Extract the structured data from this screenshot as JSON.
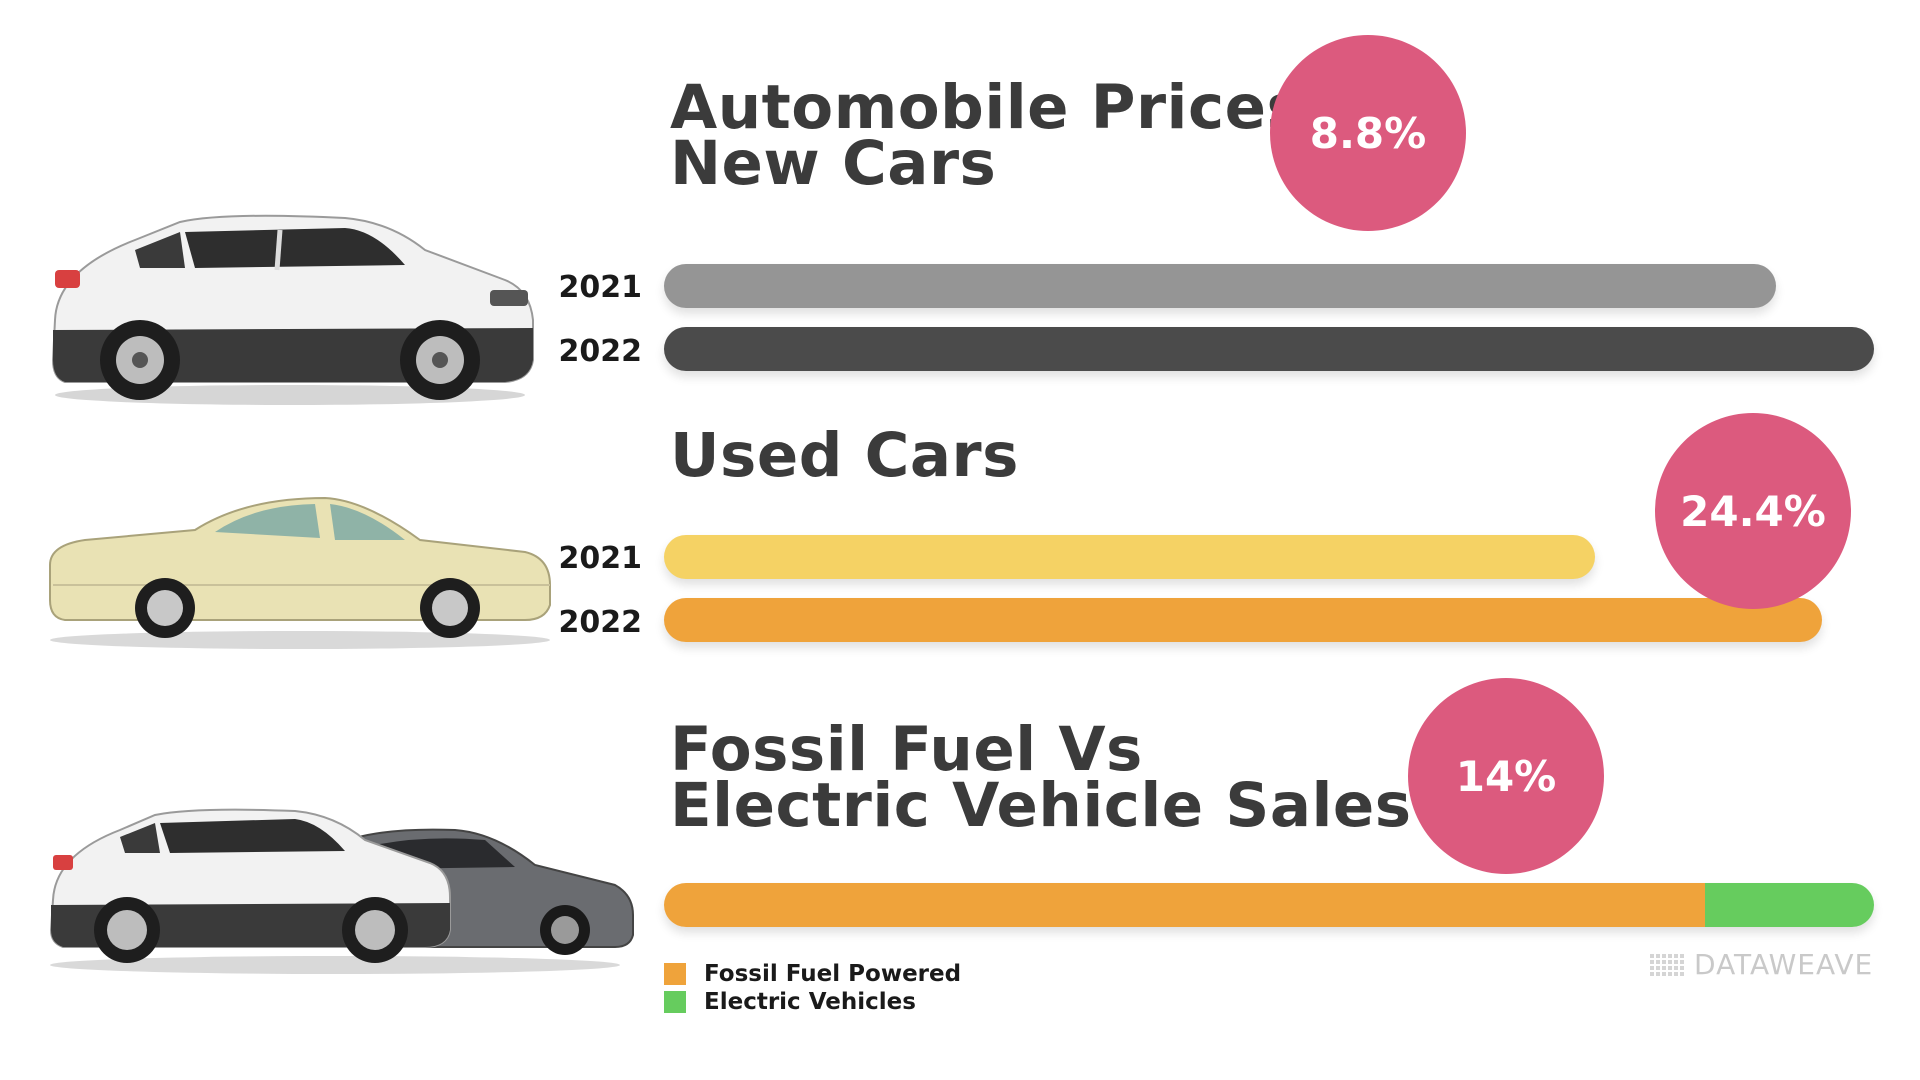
{
  "colors": {
    "bar_new_2021": "#959595",
    "bar_new_2022": "#4b4b4b",
    "bar_used_2021": "#f5d264",
    "bar_used_2022": "#efa33b",
    "fossil": "#efa33b",
    "electric": "#66cc5e",
    "badge": "#dc5a7e"
  },
  "sections": {
    "new": {
      "title_line1": "Automobile Prices",
      "title_line2": "New Cars",
      "badge": "8.8%"
    },
    "used": {
      "title_line1": "Used Cars",
      "badge": "24.4%"
    },
    "fuel": {
      "title_line1": "Fossil Fuel Vs",
      "title_line2": "Electric Vehicle Sales",
      "badge": "14%"
    }
  },
  "legend": {
    "fossil": "Fossil Fuel Powered",
    "electric": "Electric Vehicles"
  },
  "watermark": "DATAWEAVE",
  "chart_data": [
    {
      "type": "bar",
      "orientation": "horizontal",
      "categories": [
        "2021",
        "2022"
      ],
      "values": [
        100,
        108.8
      ],
      "title": "Automobile Prices New Cars",
      "annotation": "8.8%"
    },
    {
      "type": "bar",
      "orientation": "horizontal",
      "categories": [
        "2021",
        "2022"
      ],
      "values": [
        100,
        124.4
      ],
      "title": "Used Cars",
      "annotation": "24.4%"
    },
    {
      "type": "bar",
      "orientation": "horizontal",
      "stacked": true,
      "series": [
        {
          "name": "Fossil Fuel Powered",
          "values": [
            86
          ]
        },
        {
          "name": "Electric Vehicles",
          "values": [
            14
          ]
        }
      ],
      "title": "Fossil Fuel Vs Electric Vehicle Sales",
      "annotation": "14%"
    }
  ]
}
